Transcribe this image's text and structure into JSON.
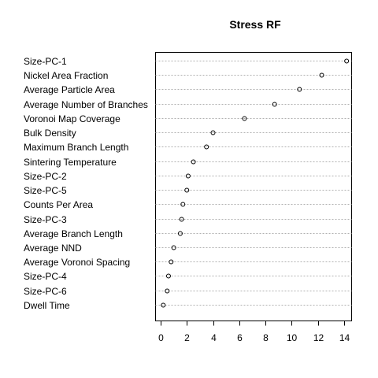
{
  "chart_data": {
    "type": "scatter",
    "style": "dotchart",
    "title": "Stress RF",
    "xlabel": "",
    "ylabel": "",
    "xlim": [
      0,
      14.3
    ],
    "xticks": [
      0,
      2,
      4,
      6,
      8,
      10,
      12,
      14
    ],
    "grid": "horizontal dotted guide lines",
    "categories": [
      "Size-PC-1",
      "Nickel Area Fraction",
      "Average Particle Area",
      "Average Number of Branches",
      "Voronoi Map Coverage",
      "Bulk Density",
      "Maximum Branch Length",
      "Sintering Temperature",
      "Size-PC-2",
      "Size-PC-5",
      "Counts Per Area",
      "Size-PC-3",
      "Average Branch Length",
      "Average NND",
      "Average Voronoi Spacing",
      "Size-PC-4",
      "Size-PC-6",
      "Dwell Time"
    ],
    "values": [
      14.2,
      12.3,
      10.6,
      8.7,
      6.4,
      4.0,
      3.5,
      2.5,
      2.1,
      2.0,
      1.7,
      1.6,
      1.5,
      1.0,
      0.8,
      0.6,
      0.5,
      0.2
    ]
  }
}
